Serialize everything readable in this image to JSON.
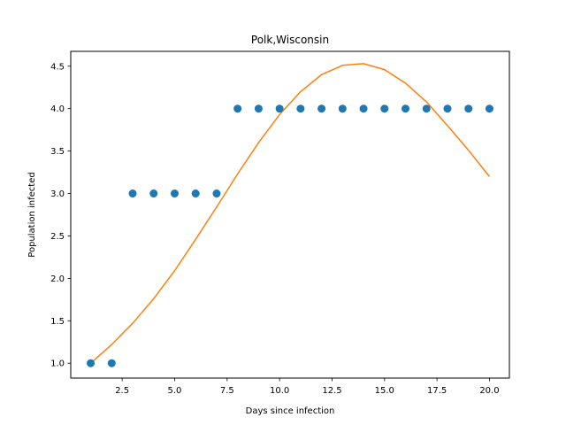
{
  "chart_data": {
    "type": "scatter",
    "title": "Polk,Wisconsin",
    "xlabel": "Days since infection",
    "ylabel": "Population infected",
    "xlim": [
      0.05,
      20.95
    ],
    "ylim": [
      0.825,
      4.675
    ],
    "xticks": [
      2.5,
      5.0,
      7.5,
      10.0,
      12.5,
      15.0,
      17.5,
      20.0
    ],
    "xtick_labels": [
      "2.5",
      "5.0",
      "7.5",
      "10.0",
      "12.5",
      "15.0",
      "17.5",
      "20.0"
    ],
    "yticks": [
      1.0,
      1.5,
      2.0,
      2.5,
      3.0,
      3.5,
      4.0,
      4.5
    ],
    "ytick_labels": [
      "1.0",
      "1.5",
      "2.0",
      "2.5",
      "3.0",
      "3.5",
      "4.0",
      "4.5"
    ],
    "grid": false,
    "colors": {
      "points": "#1f77b4",
      "fit": "#ff7f0e"
    },
    "series": [
      {
        "kind": "scatter",
        "x": [
          1,
          2,
          3,
          4,
          5,
          6,
          7,
          8,
          9,
          10,
          11,
          12,
          13,
          14,
          15,
          16,
          17,
          18,
          19,
          20
        ],
        "y": [
          1,
          1,
          3,
          3,
          3,
          3,
          3,
          4,
          4,
          4,
          4,
          4,
          4,
          4,
          4,
          4,
          4,
          4,
          4,
          4
        ]
      },
      {
        "kind": "line",
        "x": [
          1,
          2,
          3,
          4,
          5,
          6,
          7,
          8,
          9,
          10,
          11,
          12,
          13,
          14,
          15,
          16,
          17,
          18,
          19,
          20
        ],
        "y": [
          1.0,
          1.22,
          1.47,
          1.76,
          2.09,
          2.46,
          2.84,
          3.23,
          3.6,
          3.93,
          4.2,
          4.4,
          4.51,
          4.53,
          4.46,
          4.3,
          4.08,
          3.8,
          3.51,
          3.2
        ]
      }
    ]
  }
}
